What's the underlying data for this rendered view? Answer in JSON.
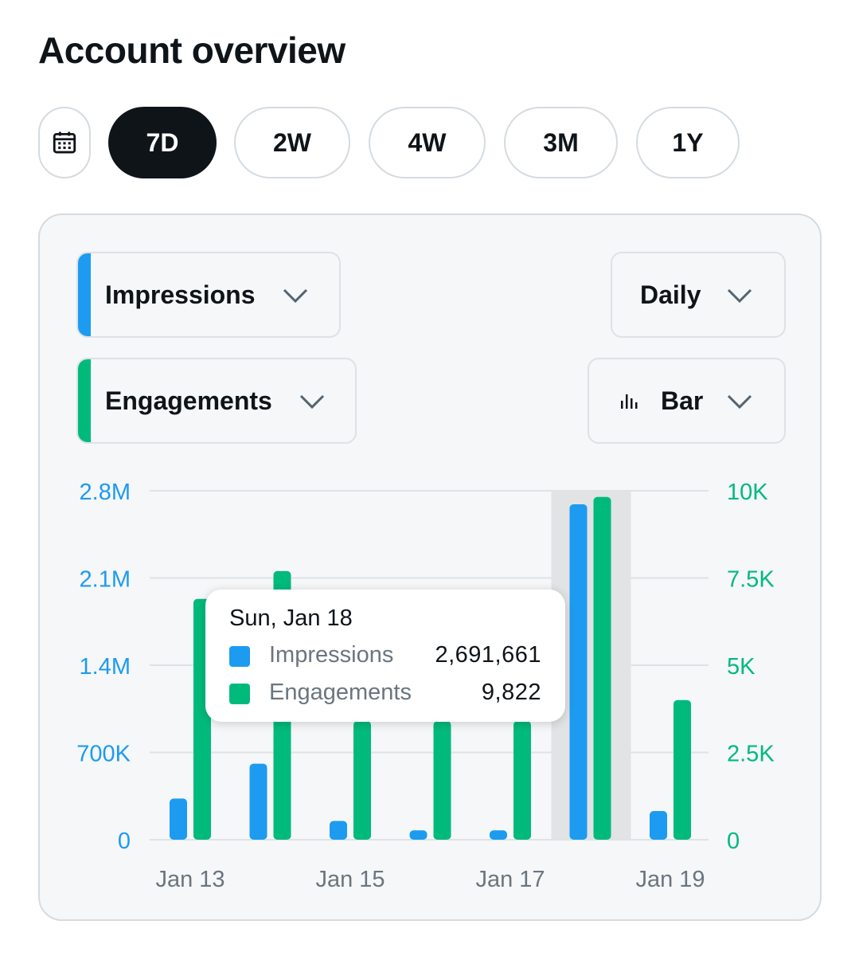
{
  "page": {
    "title": "Account overview"
  },
  "range": {
    "calendar_icon": "calendar-icon",
    "options": [
      "7D",
      "2W",
      "4W",
      "3M",
      "1Y"
    ],
    "selected": "7D"
  },
  "controls": {
    "metric1": {
      "label": "Impressions",
      "color": "#1d9bf0"
    },
    "metric2": {
      "label": "Engagements",
      "color": "#00ba7c"
    },
    "interval": {
      "label": "Daily"
    },
    "chart_type": {
      "label": "Bar",
      "icon": "bar-chart-icon"
    }
  },
  "tooltip": {
    "date": "Sun, Jan 18",
    "rows": [
      {
        "name": "Impressions",
        "value": "2,691,661"
      },
      {
        "name": "Engagements",
        "value": "9,822"
      }
    ]
  },
  "chart_data": {
    "type": "bar",
    "categories": [
      "Jan 13",
      "Jan 14",
      "Jan 15",
      "Jan 16",
      "Jan 17",
      "Jan 18",
      "Jan 19"
    ],
    "x_tick_labels": [
      "Jan 13",
      "Jan 15",
      "Jan 17",
      "Jan 19"
    ],
    "highlighted_category": "Jan 18",
    "series": [
      {
        "name": "Impressions",
        "axis": "left",
        "color": "#1d9bf0",
        "values": [
          330000,
          610000,
          150000,
          75000,
          75000,
          2691661,
          230000
        ]
      },
      {
        "name": "Engagements",
        "axis": "right",
        "color": "#00ba7c",
        "values": [
          6900,
          7700,
          3400,
          3400,
          3400,
          9822,
          4000
        ]
      }
    ],
    "left_axis": {
      "ylim": [
        0,
        2800000
      ],
      "ticks": [
        "0",
        "700K",
        "1.4M",
        "2.1M",
        "2.8M"
      ]
    },
    "right_axis": {
      "ylim": [
        0,
        10000
      ],
      "ticks": [
        "0",
        "2.5K",
        "5K",
        "7.5K",
        "10K"
      ]
    },
    "grid": true
  }
}
